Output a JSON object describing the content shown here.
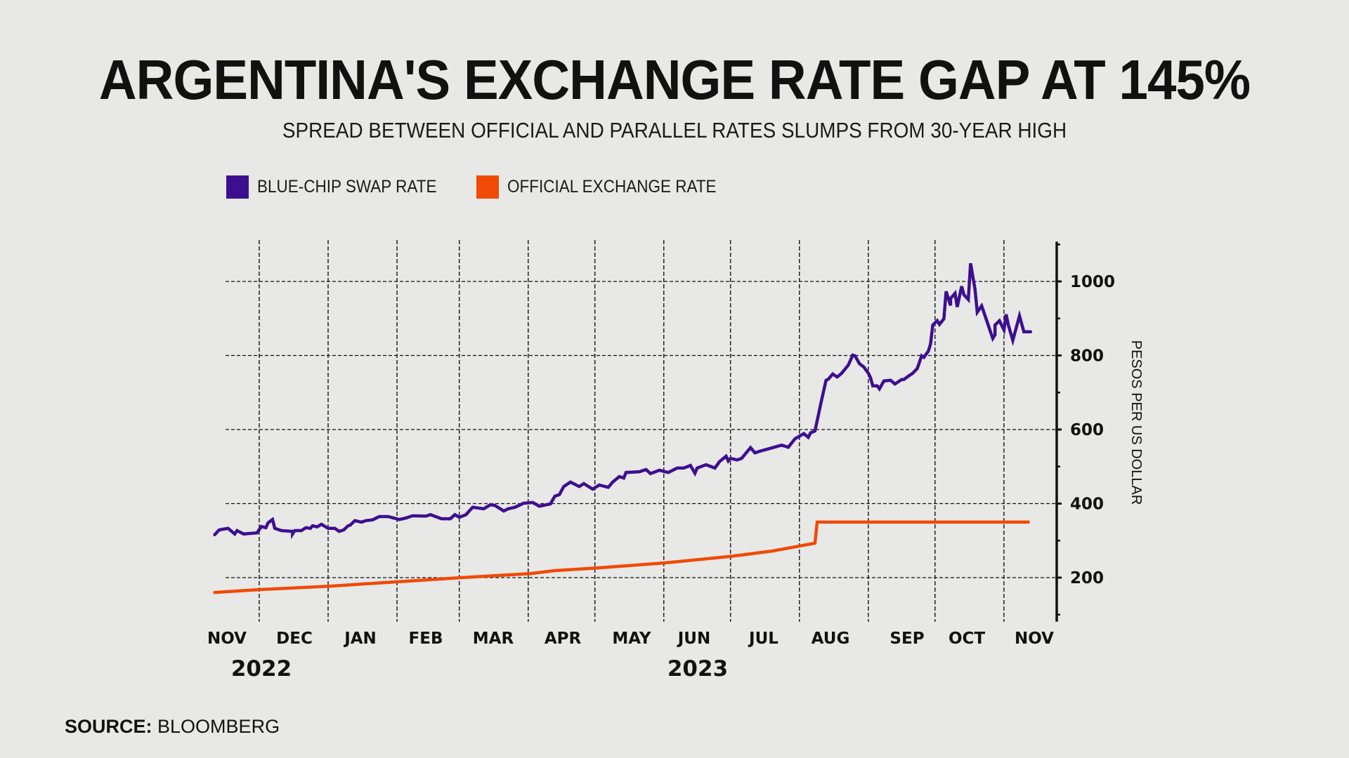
{
  "chart_data": {
    "type": "line",
    "title": "ARGENTINA'S EXCHANGE RATE GAP AT 145%",
    "subtitle": "SPREAD BETWEEN OFFICIAL AND PARALLEL RATES SLUMPS FROM 30-YEAR HIGH",
    "xlabel": "",
    "ylabel": "PESOS PER US DOLLAR",
    "x_unit": "days since 2022-11-01",
    "x_range": [
      0,
      389
    ],
    "ylim": [
      100,
      1100
    ],
    "y_ticks": [
      200,
      400,
      600,
      800,
      1000
    ],
    "y_minor_ticks": [
      100,
      300,
      500,
      700,
      900,
      1100
    ],
    "y_axis_side": "right",
    "grid": true,
    "grid_style": "dashed",
    "month_ticks": [
      {
        "label": "NOV",
        "day": 0
      },
      {
        "label": "DEC",
        "day": 30
      },
      {
        "label": "JAN",
        "day": 61
      },
      {
        "label": "FEB",
        "day": 92
      },
      {
        "label": "MAR",
        "day": 120
      },
      {
        "label": "APR",
        "day": 151
      },
      {
        "label": "MAY",
        "day": 181
      },
      {
        "label": "JUN",
        "day": 212
      },
      {
        "label": "JUL",
        "day": 242
      },
      {
        "label": "AUG",
        "day": 273
      },
      {
        "label": "SEP",
        "day": 304
      },
      {
        "label": "OCT",
        "day": 334
      },
      {
        "label": "NOV",
        "day": 365
      }
    ],
    "year_labels": [
      "2022",
      "2023"
    ],
    "legend_position": "top-left",
    "series": [
      {
        "name": "BLUE-CHIP SWAP RATE",
        "color": "#3d0f8f",
        "points": [
          [
            10,
            316
          ],
          [
            12,
            329
          ],
          [
            16,
            333
          ],
          [
            19,
            318
          ],
          [
            20,
            327
          ],
          [
            23,
            318
          ],
          [
            29,
            321
          ],
          [
            31,
            338
          ],
          [
            33,
            335
          ],
          [
            34,
            348
          ],
          [
            36,
            357
          ],
          [
            37,
            333
          ],
          [
            40,
            327
          ],
          [
            45,
            325
          ],
          [
            45,
            318
          ],
          [
            46,
            327
          ],
          [
            49,
            327
          ],
          [
            51,
            335
          ],
          [
            53,
            333
          ],
          [
            54,
            340
          ],
          [
            56,
            337
          ],
          [
            58,
            344
          ],
          [
            61,
            333
          ],
          [
            64,
            333
          ],
          [
            66,
            325
          ],
          [
            68,
            329
          ],
          [
            70,
            340
          ],
          [
            71,
            342
          ],
          [
            73,
            354
          ],
          [
            76,
            350
          ],
          [
            78,
            354
          ],
          [
            81,
            356
          ],
          [
            84,
            365
          ],
          [
            88,
            365
          ],
          [
            93,
            357
          ],
          [
            96,
            361
          ],
          [
            99,
            367
          ],
          [
            105,
            366
          ],
          [
            107,
            370
          ],
          [
            112,
            359
          ],
          [
            116,
            359
          ],
          [
            118,
            370
          ],
          [
            120,
            363
          ],
          [
            123,
            370
          ],
          [
            126,
            390
          ],
          [
            131,
            386
          ],
          [
            134,
            397
          ],
          [
            136,
            395
          ],
          [
            140,
            380
          ],
          [
            142,
            386
          ],
          [
            145,
            390
          ],
          [
            149,
            401
          ],
          [
            153,
            403
          ],
          [
            156,
            393
          ],
          [
            161,
            399
          ],
          [
            163,
            420
          ],
          [
            165,
            424
          ],
          [
            167,
            446
          ],
          [
            170,
            458
          ],
          [
            174,
            446
          ],
          [
            176,
            454
          ],
          [
            180,
            439
          ],
          [
            183,
            450
          ],
          [
            187,
            444
          ],
          [
            189,
            458
          ],
          [
            192,
            473
          ],
          [
            194,
            469
          ],
          [
            195,
            484
          ],
          [
            201,
            486
          ],
          [
            204,
            492
          ],
          [
            206,
            481
          ],
          [
            210,
            490
          ],
          [
            214,
            484
          ],
          [
            218,
            496
          ],
          [
            221,
            496
          ],
          [
            224,
            503
          ],
          [
            226,
            482
          ],
          [
            227,
            496
          ],
          [
            231,
            505
          ],
          [
            235,
            496
          ],
          [
            237,
            513
          ],
          [
            240,
            528
          ],
          [
            241,
            515
          ],
          [
            242,
            522
          ],
          [
            245,
            518
          ],
          [
            247,
            522
          ],
          [
            251,
            551
          ],
          [
            253,
            537
          ],
          [
            255,
            541
          ],
          [
            261,
            551
          ],
          [
            265,
            558
          ],
          [
            268,
            552
          ],
          [
            271,
            575
          ],
          [
            275,
            589
          ],
          [
            277,
            579
          ],
          [
            278,
            591
          ],
          [
            280,
            596
          ],
          [
            283,
            680
          ],
          [
            285,
            733
          ],
          [
            286,
            736
          ],
          [
            288,
            750
          ],
          [
            290,
            742
          ],
          [
            292,
            752
          ],
          [
            295,
            774
          ],
          [
            297,
            801
          ],
          [
            298,
            799
          ],
          [
            300,
            778
          ],
          [
            302,
            769
          ],
          [
            304,
            752
          ],
          [
            305,
            740
          ],
          [
            306,
            718
          ],
          [
            308,
            718
          ],
          [
            309,
            710
          ],
          [
            311,
            731
          ],
          [
            314,
            733
          ],
          [
            316,
            723
          ],
          [
            319,
            735
          ],
          [
            320,
            735
          ],
          [
            322,
            744
          ],
          [
            324,
            752
          ],
          [
            326,
            765
          ],
          [
            328,
            799
          ],
          [
            329,
            795
          ],
          [
            331,
            812
          ],
          [
            332,
            831
          ],
          [
            333,
            882
          ],
          [
            335,
            894
          ],
          [
            336,
            884
          ],
          [
            338,
            899
          ],
          [
            339,
            973
          ],
          [
            341,
            935
          ],
          [
            341,
            954
          ],
          [
            343,
            968
          ],
          [
            344,
            931
          ],
          [
            346,
            987
          ],
          [
            347,
            964
          ],
          [
            349,
            951
          ],
          [
            350,
            1049
          ],
          [
            352,
            979
          ],
          [
            353,
            917
          ],
          [
            355,
            934
          ],
          [
            360,
            846
          ],
          [
            361,
            856
          ],
          [
            361,
            882
          ],
          [
            363,
            894
          ],
          [
            365,
            869
          ],
          [
            366,
            911
          ],
          [
            367,
            882
          ],
          [
            369,
            841
          ],
          [
            372,
            907
          ],
          [
            374,
            864
          ],
          [
            377,
            864
          ]
        ]
      },
      {
        "name": "OFFICIAL EXCHANGE RATE",
        "color": "#f04a06",
        "points": [
          [
            10,
            160
          ],
          [
            31,
            168
          ],
          [
            62,
            177
          ],
          [
            93,
            189
          ],
          [
            121,
            200
          ],
          [
            152,
            211
          ],
          [
            163,
            219
          ],
          [
            182,
            226
          ],
          [
            213,
            240
          ],
          [
            243,
            258
          ],
          [
            261,
            272
          ],
          [
            271,
            283
          ],
          [
            280,
            293
          ],
          [
            281,
            350
          ],
          [
            376,
            350
          ]
        ]
      }
    ]
  },
  "footer": {
    "source_label": "SOURCE:",
    "source_value": "BLOOMBERG"
  }
}
